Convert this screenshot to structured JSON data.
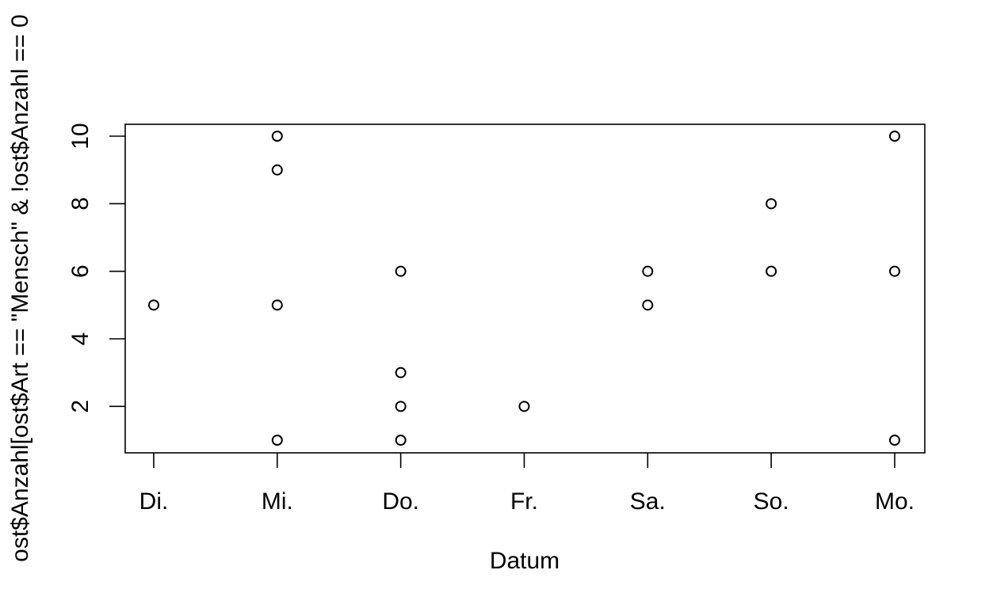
{
  "chart_data": {
    "type": "scatter",
    "title": "",
    "xlabel": "Datum",
    "ylabel": "ost$Anzahl[ost$Art == \"Mensch\" & !ost$Anzahl == 0",
    "categories": [
      "Di.",
      "Mi.",
      "Do.",
      "Fr.",
      "Sa.",
      "So.",
      "Mo."
    ],
    "yticks": [
      2,
      4,
      6,
      8,
      10
    ],
    "ylim": [
      1,
      10
    ],
    "grid": false,
    "marker": "open-circle",
    "points": [
      {
        "x": "Di.",
        "y": 5
      },
      {
        "x": "Mi.",
        "y": 10
      },
      {
        "x": "Mi.",
        "y": 9
      },
      {
        "x": "Mi.",
        "y": 5
      },
      {
        "x": "Mi.",
        "y": 1
      },
      {
        "x": "Do.",
        "y": 6
      },
      {
        "x": "Do.",
        "y": 3
      },
      {
        "x": "Do.",
        "y": 2
      },
      {
        "x": "Do.",
        "y": 1
      },
      {
        "x": "Fr.",
        "y": 2
      },
      {
        "x": "Sa.",
        "y": 6
      },
      {
        "x": "Sa.",
        "y": 5
      },
      {
        "x": "So.",
        "y": 8
      },
      {
        "x": "So.",
        "y": 6
      },
      {
        "x": "Mo.",
        "y": 10
      },
      {
        "x": "Mo.",
        "y": 6
      },
      {
        "x": "Mo.",
        "y": 1
      }
    ]
  }
}
